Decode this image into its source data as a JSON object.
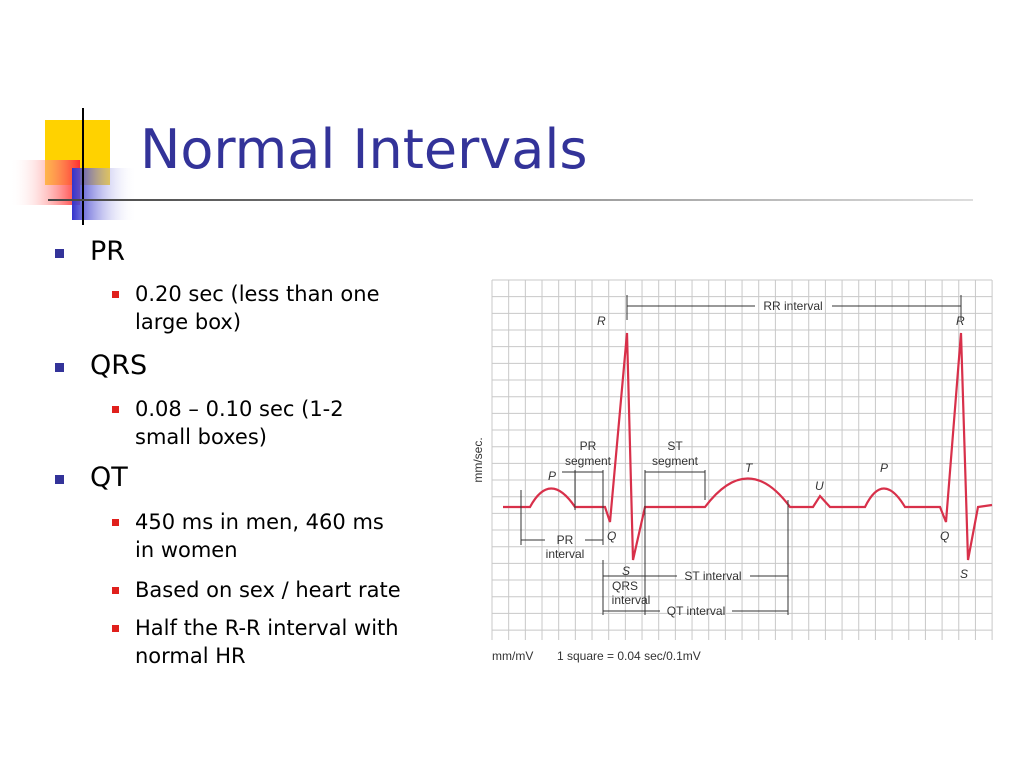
{
  "title": "Normal Intervals",
  "bullets": [
    {
      "text": "PR",
      "sub": [
        [
          "0.20 sec (less than one",
          "large box)"
        ]
      ]
    },
    {
      "text": "QRS",
      "sub": [
        [
          "0.08 – 0.10 sec (1-2",
          "small boxes)"
        ]
      ]
    },
    {
      "text": "QT",
      "sub": [
        [
          "450 ms in men, 460 ms",
          "in women"
        ],
        [
          "Based on sex / heart rate"
        ],
        [
          "Half the R-R interval with",
          "normal HR"
        ]
      ]
    }
  ],
  "diagram": {
    "waves": {
      "p1": "P",
      "q1": "Q",
      "r1": "R",
      "s1": "S",
      "t": "T",
      "u": "U",
      "p2": "P",
      "q2": "Q",
      "r2": "R",
      "s2": "S"
    },
    "rr_interval": "RR interval",
    "pr_segment": [
      "PR",
      "segment"
    ],
    "st_segment": [
      "ST",
      "segment"
    ],
    "pr_interval": [
      "PR",
      "interval"
    ],
    "qrs_interval": [
      "QRS",
      "interval"
    ],
    "st_interval": "ST interval",
    "qt_interval": "QT interval",
    "axis_label": "mm/sec.",
    "footer_unit": "mm/mV",
    "footer_scale": "1 square = 0.04 sec/0.1mV"
  }
}
